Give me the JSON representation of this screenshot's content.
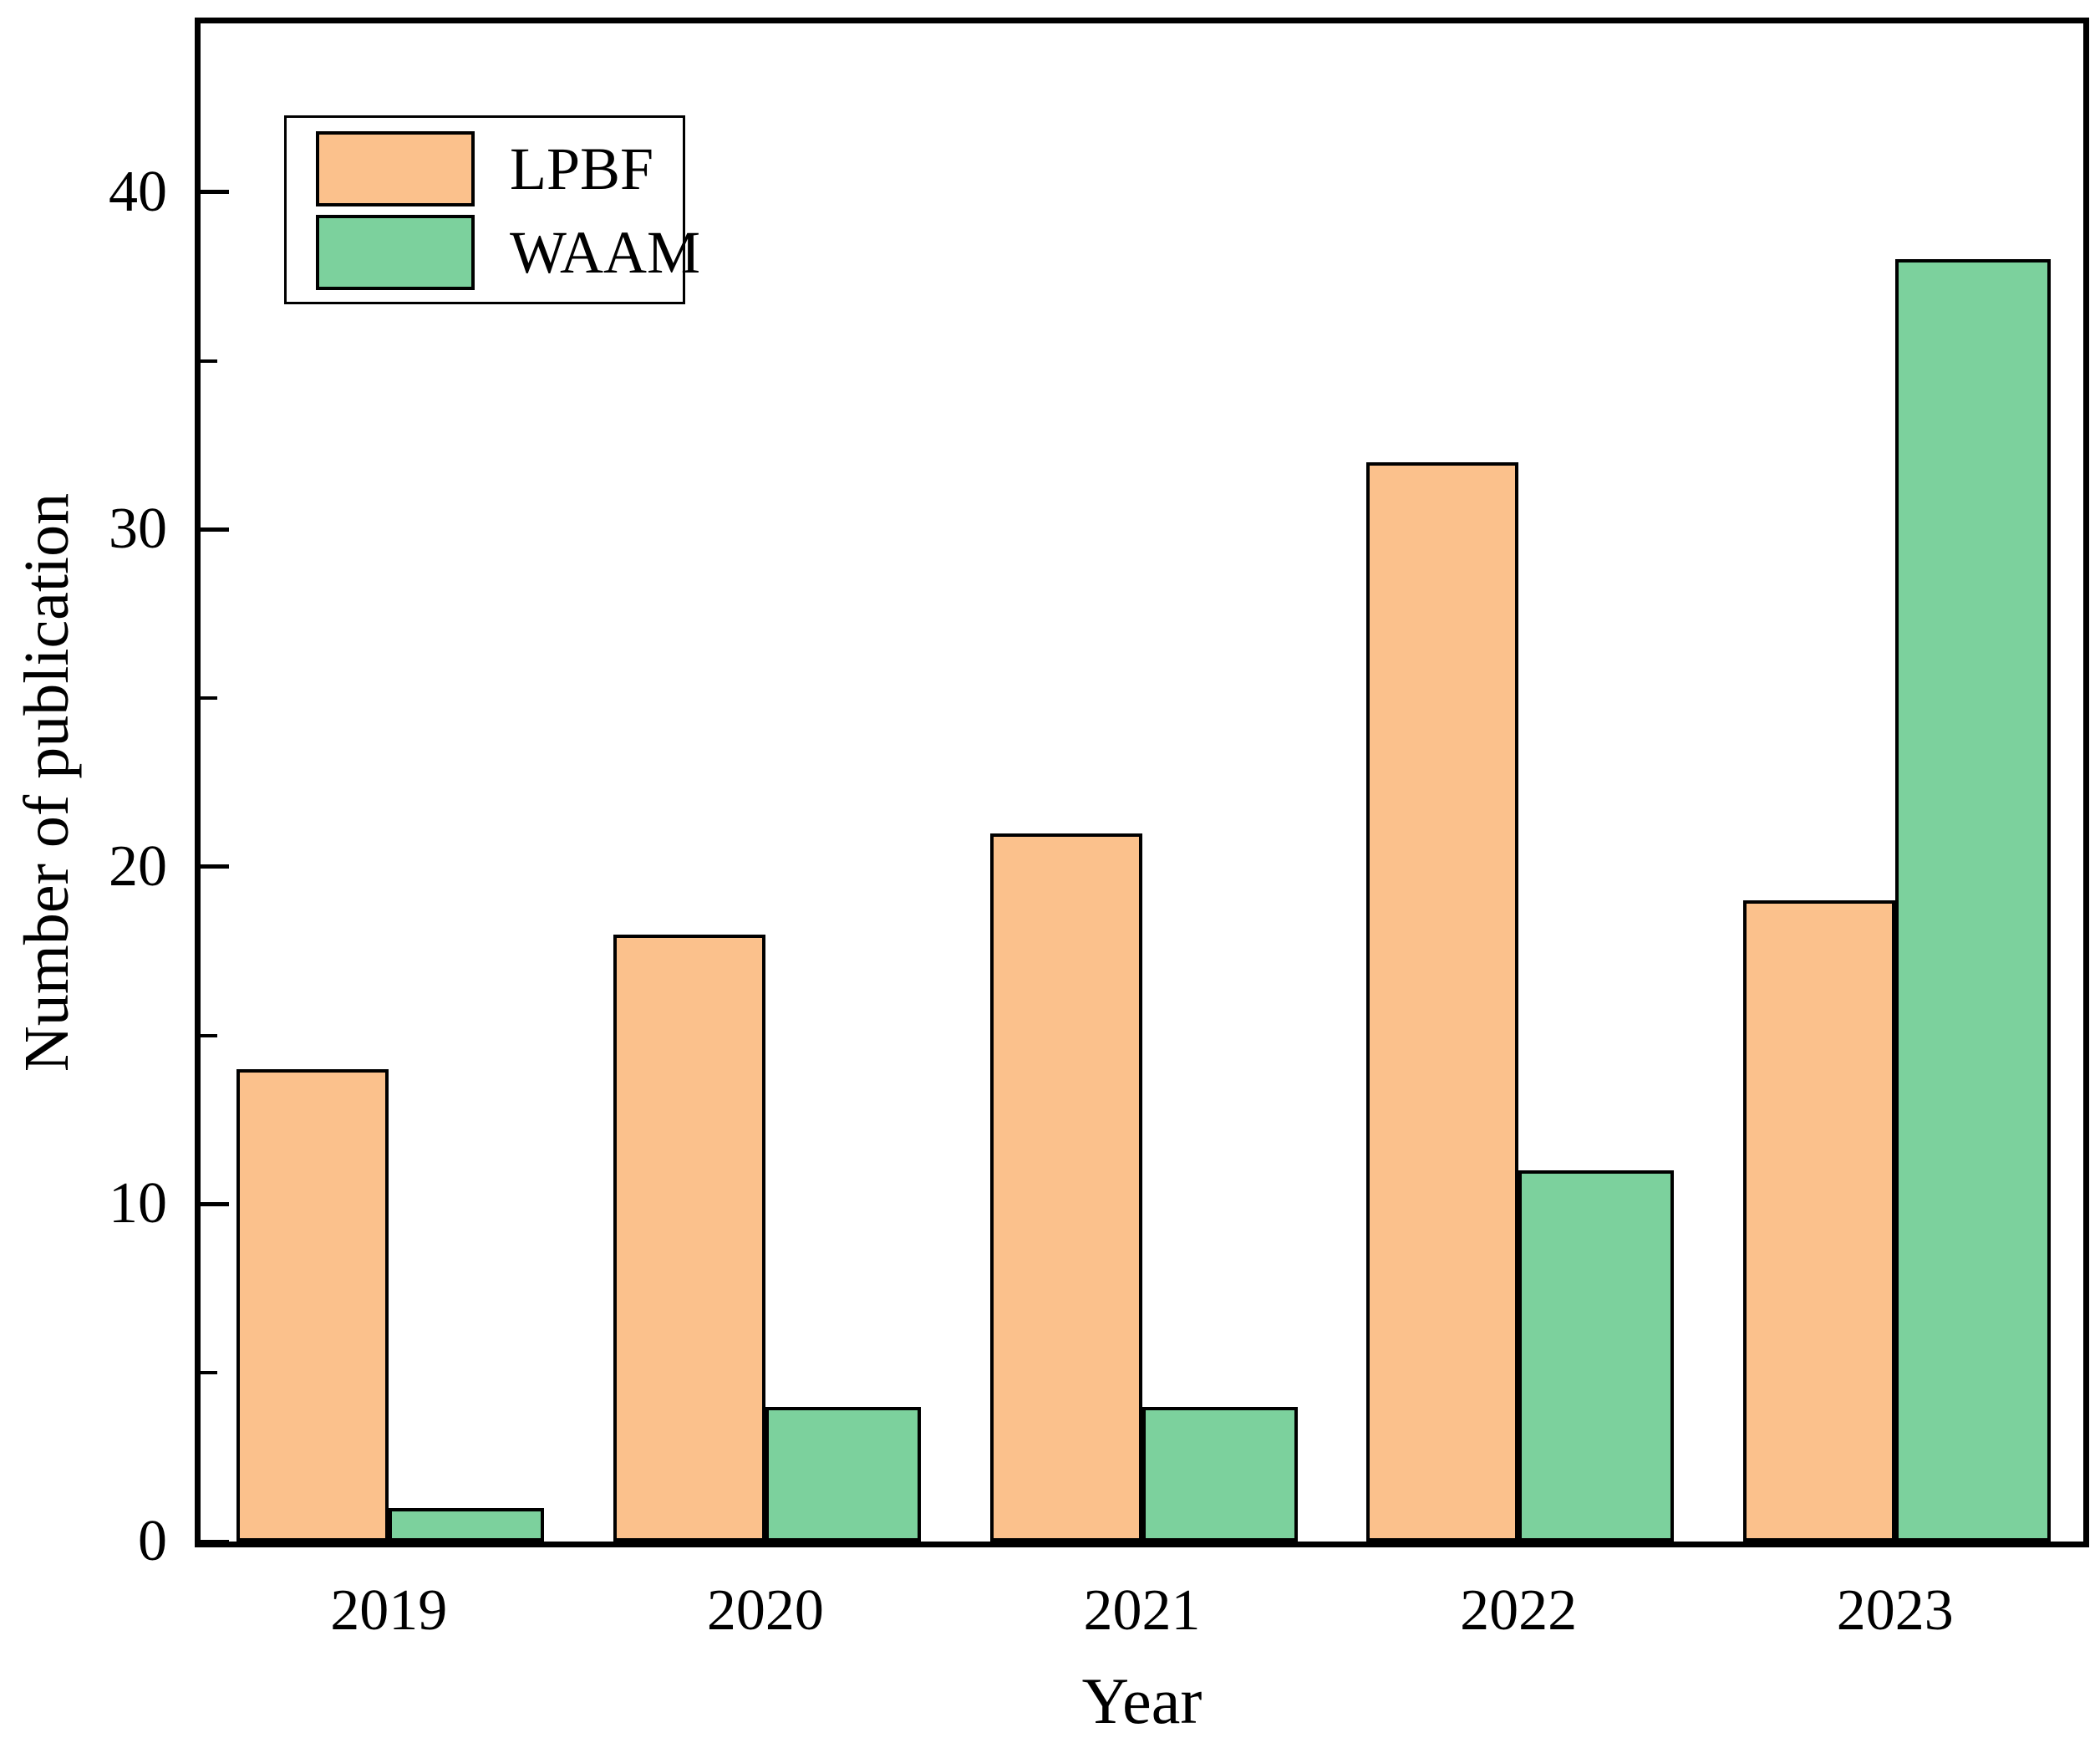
{
  "chart_data": {
    "type": "bar",
    "title": "",
    "categories": [
      "2019",
      "2020",
      "2021",
      "2022",
      "2023"
    ],
    "series": [
      {
        "name": "LPBF",
        "color": "#FBC18C",
        "values": [
          14,
          18,
          21,
          32,
          19
        ]
      },
      {
        "name": "WAAM",
        "color": "#7CD19D",
        "values": [
          1,
          4,
          4,
          11,
          38
        ]
      }
    ],
    "xlabel": "Year",
    "ylabel": "Number of publication",
    "ylim": [
      0,
      45
    ],
    "yticks": [
      0,
      10,
      20,
      30,
      40
    ],
    "ytick_labels": [
      "0",
      "10",
      "20",
      "30",
      "40"
    ],
    "yticks_minor": [
      5,
      15,
      25,
      35
    ],
    "grid": false,
    "legend_position": "upper-left",
    "bar_edge_color": "#000000",
    "axis_color": "#000000"
  }
}
